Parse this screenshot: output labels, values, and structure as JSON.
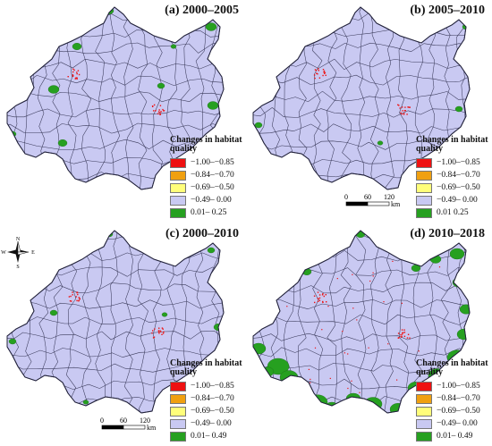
{
  "colors": {
    "red": "#ee1111",
    "orange": "#f0a010",
    "yellow": "#fffe7a",
    "lavender": "#c9c9f2",
    "green": "#26a020",
    "boundary": "#3a3a5a"
  },
  "legend_title": "Changes in habitat quality",
  "compass": {
    "n": "N",
    "s": "S",
    "e": "E",
    "w": "W"
  },
  "scale": {
    "labels": [
      "0",
      "60",
      "120"
    ],
    "unit": "km"
  },
  "panels": [
    {
      "title": "(a) 2000–2005",
      "legend": [
        {
          "label": "−1.00–−0.85",
          "color": "#ee1111"
        },
        {
          "label": "−0.84–−0.70",
          "color": "#f0a010"
        },
        {
          "label": "−0.69–−0.50",
          "color": "#fffe7a"
        },
        {
          "label": "−0.49– 0.00",
          "color": "#c9c9f2"
        },
        {
          "label": "0.01– 0.25",
          "color": "#26a020"
        }
      ]
    },
    {
      "title": "(b) 2005–2010",
      "legend": [
        {
          "label": "−1.00–−0.85",
          "color": "#ee1111"
        },
        {
          "label": "−0.84–−0.70",
          "color": "#f0a010"
        },
        {
          "label": "−0.69–−0.50",
          "color": "#fffe7a"
        },
        {
          "label": "−0.49– 0.00",
          "color": "#c9c9f2"
        },
        {
          "label": "0.01  0.25",
          "color": "#26a020"
        }
      ]
    },
    {
      "title": "(c) 2000–2010",
      "legend": [
        {
          "label": "−1.00–−0.85",
          "color": "#ee1111"
        },
        {
          "label": "−0.84–−0.70",
          "color": "#f0a010"
        },
        {
          "label": "−0.69–−0.50",
          "color": "#fffe7a"
        },
        {
          "label": "−0.49– 0.00",
          "color": "#c9c9f2"
        },
        {
          "label": "0.01– 0.49",
          "color": "#26a020"
        }
      ]
    },
    {
      "title": "(d) 2010–2018",
      "legend": [
        {
          "label": "−1.00–−0.85",
          "color": "#ee1111"
        },
        {
          "label": "−0.84–−0.70",
          "color": "#f0a010"
        },
        {
          "label": "−0.69–−0.50",
          "color": "#fffe7a"
        },
        {
          "label": "−0.49– 0.00",
          "color": "#c9c9f2"
        },
        {
          "label": "0.01– 0.49",
          "color": "#26a020"
        }
      ]
    }
  ]
}
